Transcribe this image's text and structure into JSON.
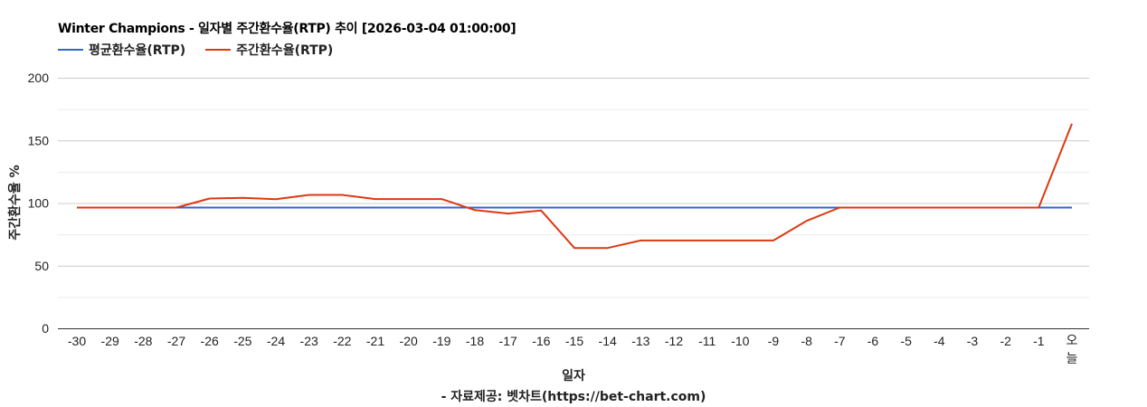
{
  "header": {
    "title": "Winter Champions - 일자별 주간환수율(RTP) 추이 [2026-03-04 01:00:00]"
  },
  "legend": {
    "items": [
      {
        "label": "평균환수율(RTP)",
        "color": "#3366cc"
      },
      {
        "label": "주간환수율(RTP)",
        "color": "#dc3912"
      }
    ]
  },
  "axes": {
    "x_title": "일자",
    "y_title": "주간환수율 %"
  },
  "footer": {
    "source": "- 자료제공: 벳차트(https://bet-chart.com)"
  },
  "chart_data": {
    "type": "line",
    "title": "Winter Champions - 일자별 주간환수율(RTP) 추이 [2026-03-04 01:00:00]",
    "xlabel": "일자",
    "ylabel": "주간환수율 %",
    "ylim": [
      0,
      200
    ],
    "yticks": [
      0,
      50,
      100,
      150,
      200
    ],
    "minor_gridlines": [
      25,
      75,
      125,
      175
    ],
    "grid": true,
    "legend_position": "top",
    "categories": [
      "-30",
      "-29",
      "-28",
      "-27",
      "-26",
      "-25",
      "-24",
      "-23",
      "-22",
      "-21",
      "-20",
      "-19",
      "-18",
      "-17",
      "-16",
      "-15",
      "-14",
      "-13",
      "-12",
      "-11",
      "-10",
      "-9",
      "-8",
      "-7",
      "-6",
      "-5",
      "-4",
      "-3",
      "-2",
      "-1",
      "오늘"
    ],
    "series": [
      {
        "name": "평균환수율(RTP)",
        "color": "#3366cc",
        "values": [
          96.4,
          96.4,
          96.4,
          96.4,
          96.4,
          96.4,
          96.4,
          96.4,
          96.4,
          96.4,
          96.4,
          96.4,
          96.4,
          96.4,
          96.4,
          96.4,
          96.4,
          96.4,
          96.4,
          96.4,
          96.4,
          96.4,
          96.4,
          96.4,
          96.4,
          96.4,
          96.4,
          96.4,
          96.4,
          96.4,
          96.4
        ]
      },
      {
        "name": "주간환수율(RTP)",
        "color": "#dc3912",
        "values": [
          96.4,
          96.4,
          96.4,
          96.4,
          103.6,
          104.1,
          103.1,
          106.5,
          106.5,
          103.2,
          103.2,
          103.2,
          94.4,
          91.6,
          94.0,
          64.1,
          64.1,
          70.1,
          70.1,
          70.1,
          70.1,
          70.1,
          85.8,
          96.4,
          96.4,
          96.4,
          96.4,
          96.4,
          96.4,
          96.4,
          163.4
        ]
      }
    ]
  }
}
